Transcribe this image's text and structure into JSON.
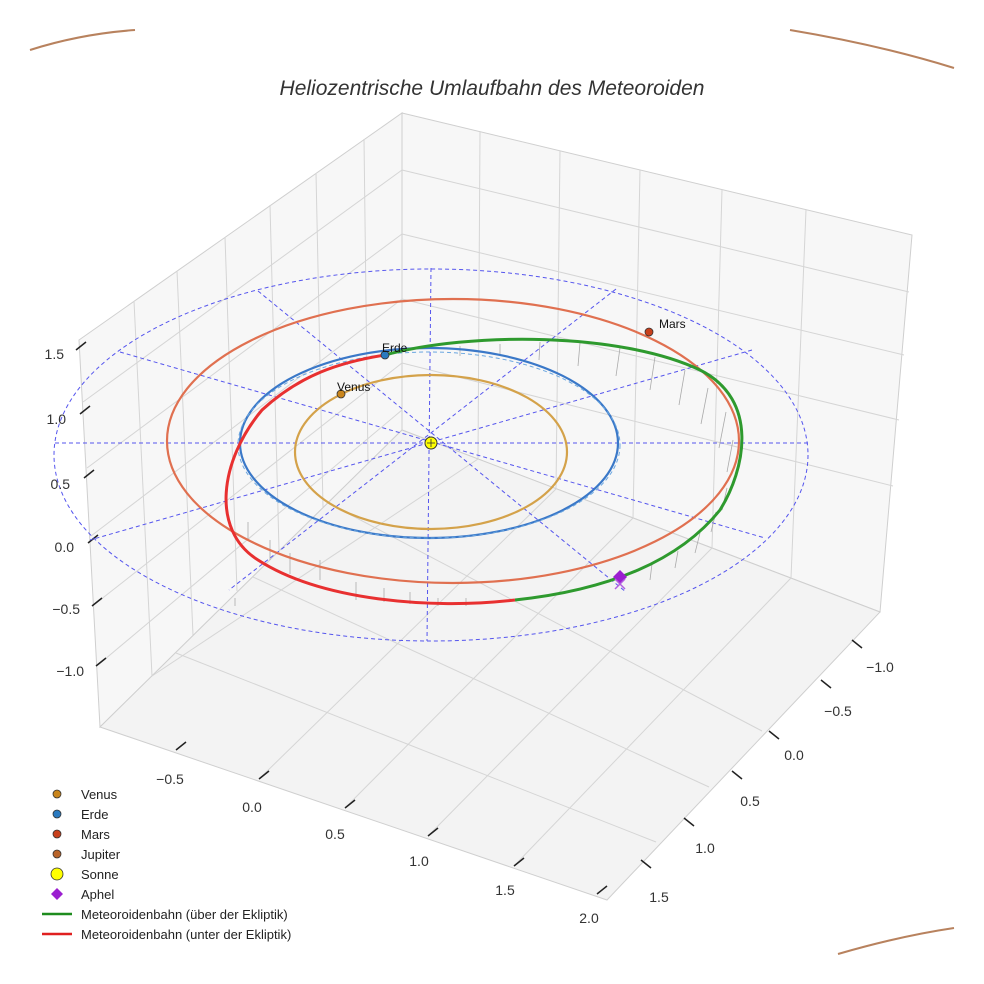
{
  "chart_data": {
    "type": "line",
    "title": "Heliozentrische Umlaufbahn des Meteoroiden",
    "x_ticks": [
      "−0.5",
      "0.0",
      "0.5",
      "1.0",
      "1.5",
      "2.0"
    ],
    "y_ticks": [
      "−1.0",
      "−0.5",
      "0.0",
      "0.5",
      "1.0",
      "1.5"
    ],
    "z_ticks": [
      "1.5",
      "1.0",
      "0.5",
      "0.0",
      "−0.5",
      "−1.0"
    ],
    "planet_labels": [
      "Venus",
      "Erde",
      "Mars"
    ],
    "orbits": [
      {
        "name": "Venus",
        "radius_au": 0.72,
        "color": "#d4a24a"
      },
      {
        "name": "Erde",
        "radius_au": 1.0,
        "color": "#3a78c8"
      },
      {
        "name": "Mars",
        "radius_au": 1.52,
        "color": "#e07050"
      }
    ],
    "meteoroid_orbit": {
      "above_color": "#2e9a2e",
      "below_color": "#e83030",
      "ecliptic_circle_radius_au": 2.1,
      "aphel_color": "#9b1fd0"
    },
    "legend": [
      {
        "label": "Venus",
        "marker": "circle",
        "color": "#c9851c"
      },
      {
        "label": "Erde",
        "marker": "circle",
        "color": "#2a7ac0"
      },
      {
        "label": "Mars",
        "marker": "circle",
        "color": "#c8401c"
      },
      {
        "label": "Jupiter",
        "marker": "circle",
        "color": "#b8642a"
      },
      {
        "label": "Sonne",
        "marker": "circle-large",
        "color": "#ffff00"
      },
      {
        "label": "Aphel",
        "marker": "diamond",
        "color": "#9b1fd0"
      },
      {
        "label": "Meteoroidenbahn (über der Ekliptik)",
        "marker": "line",
        "color": "#1e8c1e"
      },
      {
        "label": "Meteoroidenbahn (unter der Ekliptik)",
        "marker": "line",
        "color": "#e02020"
      }
    ],
    "legend_position": "bottom-left",
    "grid": true
  }
}
